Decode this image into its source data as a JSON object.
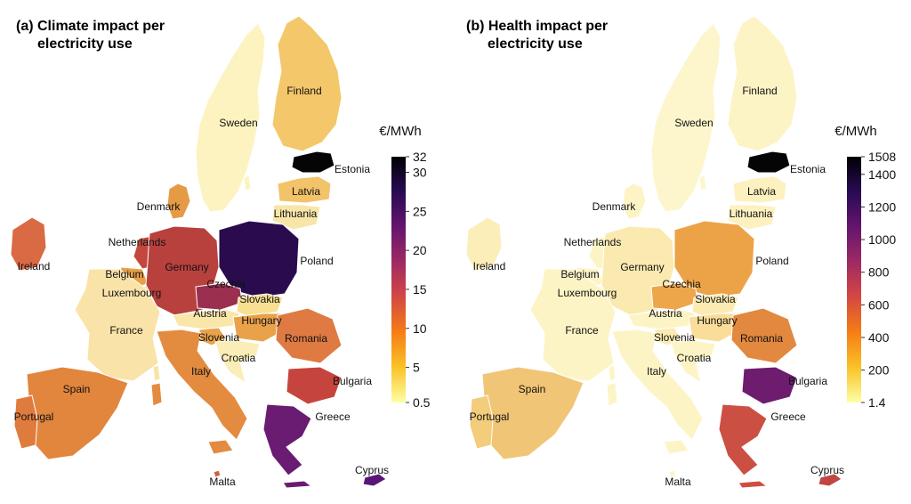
{
  "panels": [
    {
      "id": "a",
      "title_line1": "(a) Climate impact per",
      "title_line2": "electricity use",
      "unit": "€/MWh",
      "scale": {
        "min": 0.5,
        "max": 32,
        "tick_labels": [
          "32",
          "30",
          "25",
          "20",
          "15",
          "10",
          "5",
          "0.5"
        ],
        "tick_values": [
          32,
          30,
          25,
          20,
          15,
          10,
          5,
          0.5
        ],
        "colors": [
          "#fcffa4",
          "#fac228",
          "#f57d15",
          "#d44842",
          "#9f2a63",
          "#65156e",
          "#280b53",
          "#000004"
        ]
      },
      "country_colors": {
        "Ireland": "#d96a44",
        "Portugal": "#e07b3e",
        "Spain": "#e2853d",
        "France": "#fae3a8",
        "Belgium": "#e8a046",
        "Netherlands": "#c4473e",
        "Luxembourg": "#f3cf7c",
        "Germany": "#b8413e",
        "Denmark": "#e59a45",
        "Sweden": "#fcf3c0",
        "Finland": "#f3c76a",
        "Estonia": "#050505",
        "Latvia": "#f3c36a",
        "Lithuania": "#f8e6a8",
        "Poland": "#2a0b4e",
        "Czechia": "#9a2f4f",
        "Slovakia": "#f8df92",
        "Austria": "#f9e7aa",
        "Hungary": "#e9a14a",
        "Slovenia": "#e9a14a",
        "Croatia": "#faedb8",
        "Italy": "#e38b3f",
        "Romania": "#de7a42",
        "Bulgaria": "#c5453e",
        "Greece": "#6a1b72",
        "Malta": "#d0603e",
        "Cyprus": "#5a1578"
      }
    },
    {
      "id": "b",
      "title_line1": "(b) Health impact per",
      "title_line2": "electricity use",
      "unit": "€/MWh",
      "scale": {
        "min": 1.4,
        "max": 1508,
        "tick_labels": [
          "1508",
          "1400",
          "1200",
          "1000",
          "800",
          "600",
          "400",
          "200",
          "1.4"
        ],
        "tick_values": [
          1508,
          1400,
          1200,
          1000,
          800,
          600,
          400,
          200,
          1.4
        ],
        "colors": [
          "#fcffa4",
          "#fac228",
          "#f57d15",
          "#d44842",
          "#9f2a63",
          "#65156e",
          "#280b53",
          "#000004"
        ]
      },
      "country_colors": {
        "Ireland": "#fbeeb8",
        "Portugal": "#f3cc7c",
        "Spain": "#f1c576",
        "France": "#fdf4c6",
        "Belgium": "#fdf4c6",
        "Netherlands": "#fdf4c6",
        "Luxembourg": "#fdf4c6",
        "Germany": "#fbeab0",
        "Denmark": "#fdf4c6",
        "Sweden": "#fdf6cc",
        "Finland": "#fdf4c6",
        "Estonia": "#050505",
        "Latvia": "#fdf1c0",
        "Lithuania": "#fdf1c0",
        "Poland": "#eca347",
        "Czechia": "#eda649",
        "Slovakia": "#fbeab2",
        "Austria": "#fdf4c6",
        "Hungary": "#f9dd98",
        "Slovenia": "#fbeab2",
        "Croatia": "#fdf4c6",
        "Italy": "#fdf4c6",
        "Romania": "#e3883f",
        "Bulgaria": "#6e1c6e",
        "Greece": "#cc4f43",
        "Malta": "#fdf4c6",
        "Cyprus": "#c04543"
      }
    }
  ],
  "country_labels": [
    "Sweden",
    "Finland",
    "Estonia",
    "Latvia",
    "Lithuania",
    "Denmark",
    "Ireland",
    "Netherlands",
    "Germany",
    "Poland",
    "Belgium",
    "Luxembourg",
    "Czechia",
    "Slovakia",
    "Austria",
    "Hungary",
    "France",
    "Slovenia",
    "Romania",
    "Croatia",
    "Italy",
    "Bulgaria",
    "Spain",
    "Greece",
    "Portugal",
    "Malta",
    "Cyprus"
  ]
}
